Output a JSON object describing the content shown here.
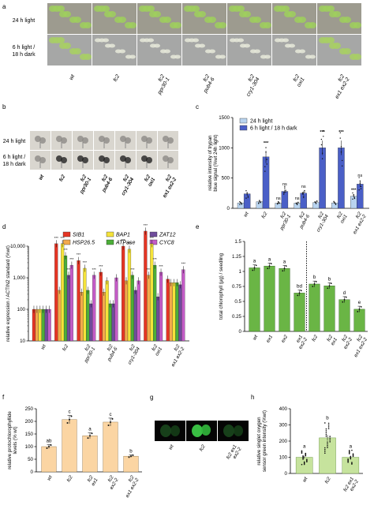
{
  "panel_letters": [
    "a",
    "b",
    "c",
    "d",
    "e",
    "f",
    "g",
    "h"
  ],
  "panel_a": {
    "rows": [
      "24 h light",
      "6 h light /\n18 h dark"
    ],
    "genotypes": [
      "wt",
      "fc2",
      "fc2\nppr30-1",
      "fc2\npub4-6",
      "fc2\ncry1-304",
      "fc2\noxi1",
      "fc2\nex1 ex2-2"
    ]
  },
  "panel_b": {
    "rows": [
      "24 h light",
      "6 h light /\n18 h dark"
    ],
    "genotypes": [
      "wt",
      "fc2",
      "fc2\nppr30-1",
      "fc2\npub4-6",
      "fc2\ncry1-304",
      "fc2\noxi1",
      "fc2\nex1 ex2-2"
    ]
  },
  "colors": {
    "light_bar": "#b9d4f0",
    "dark_bar": "#4a5fc7",
    "sib1": "#e53524",
    "hsp": "#f3a94c",
    "bap1": "#f5e33a",
    "atpase": "#4cae38",
    "zat12": "#6f4c9b",
    "cyc8": "#c45cc7",
    "green_bar": "#6ab545",
    "orange_bar": "#fbd5a3",
    "light_green": "#c6e39d"
  },
  "chart_data": [
    {
      "panel": "c",
      "type": "bar",
      "categories": [
        "wt",
        "fc2",
        "fc2 ppr30-1",
        "fc2 pub4-6",
        "fc2 cry1-304",
        "fc2 oxi1",
        "fc2 ex1 ex2-2"
      ],
      "series": [
        {
          "name": "24 h light",
          "values": [
            90,
            110,
            85,
            85,
            95,
            90,
            200
          ]
        },
        {
          "name": "6 h light / 18 h dark",
          "values": [
            240,
            850,
            280,
            250,
            1000,
            1000,
            400
          ]
        }
      ],
      "annotations_light": [
        "",
        "",
        "ns",
        "ns",
        "",
        "",
        "***"
      ],
      "annotations_dark": [
        "",
        "***",
        "ns",
        "ns",
        "***",
        "***",
        "ns"
      ],
      "ylabel": "relative intensity of trypan\nblue signal (%wt 24h light)",
      "ylim": [
        0,
        1500
      ],
      "yticks": [
        0,
        500,
        1000,
        1500
      ]
    },
    {
      "panel": "d",
      "type": "bar",
      "yscale": "log",
      "categories": [
        "wt",
        "fc2",
        "fc2 ppr30-1",
        "fc2 pub4-6",
        "fc2 cry1-304",
        "fc2 oxi1",
        "fc2 ex1 ex2-2"
      ],
      "series": [
        {
          "name": "SIB1",
          "values": [
            100,
            12000,
            3500,
            1500,
            10000,
            30000,
            900
          ]
        },
        {
          "name": "HSP26.5",
          "values": [
            100,
            400,
            350,
            350,
            800,
            1200,
            700
          ]
        },
        {
          "name": "BAP1",
          "values": [
            100,
            12000,
            2000,
            800,
            8000,
            12000,
            700
          ]
        },
        {
          "name": "ATPase",
          "values": [
            100,
            5000,
            400,
            150,
            1200,
            2500,
            700
          ]
        },
        {
          "name": "ZAT12",
          "values": [
            100,
            1200,
            150,
            150,
            400,
            250,
            600
          ]
        },
        {
          "name": "CYC8",
          "values": [
            100,
            2500,
            1200,
            1000,
            800,
            1500,
            1800
          ]
        }
      ],
      "ylabel": "relative expression / ACTIN2 standard (%wt)",
      "yticks": [
        "10",
        "100",
        "1,000",
        "10,000"
      ]
    },
    {
      "panel": "e",
      "type": "bar",
      "categories": [
        "wt",
        "ex1",
        "ex2",
        "ex1 ex2-2",
        "fc2",
        "fc2 ex1",
        "fc2 ex2-2",
        "fc2 ex1 ex2-2"
      ],
      "values": [
        1.06,
        1.09,
        1.05,
        0.64,
        0.79,
        0.76,
        0.53,
        0.37
      ],
      "letters": [
        "a",
        "a",
        "a",
        "bd",
        "b",
        "b",
        "d",
        "e"
      ],
      "ylabel": "total chlorophyll (µg) / seedling",
      "ylim": [
        0,
        1.5
      ],
      "yticks": [
        "0",
        "0.25",
        "0.5",
        "0.75",
        "1",
        "1.25",
        "1.5"
      ]
    },
    {
      "panel": "f",
      "type": "bar",
      "categories": [
        "wt",
        "fc2",
        "fc2 ex1",
        "fc2 ex2-2",
        "fc2 ex1 ex2-2"
      ],
      "values": [
        100,
        207,
        143,
        197,
        62
      ],
      "letters": [
        "ab",
        "c",
        "a",
        "c",
        "b"
      ],
      "ylabel": "relative protochlorophyllide\nlevels (% wt)",
      "ylim": [
        0,
        250
      ],
      "yticks": [
        0,
        50,
        100,
        150,
        200,
        250
      ]
    },
    {
      "panel": "h",
      "type": "bar",
      "categories": [
        "wt",
        "fc2",
        "fc2 ex1 ex2-2"
      ],
      "values": [
        100,
        220,
        100
      ],
      "letters": [
        "a",
        "b",
        "a"
      ],
      "ylabel": "relative singlet oxygen\nsensor green intensity (%wt)",
      "ylim": [
        0,
        400
      ],
      "yticks": [
        0,
        100,
        200,
        300,
        400
      ]
    }
  ],
  "panel_g": {
    "genotypes": [
      "wt",
      "fc2",
      "fc2 ex1\nex2-2"
    ]
  }
}
